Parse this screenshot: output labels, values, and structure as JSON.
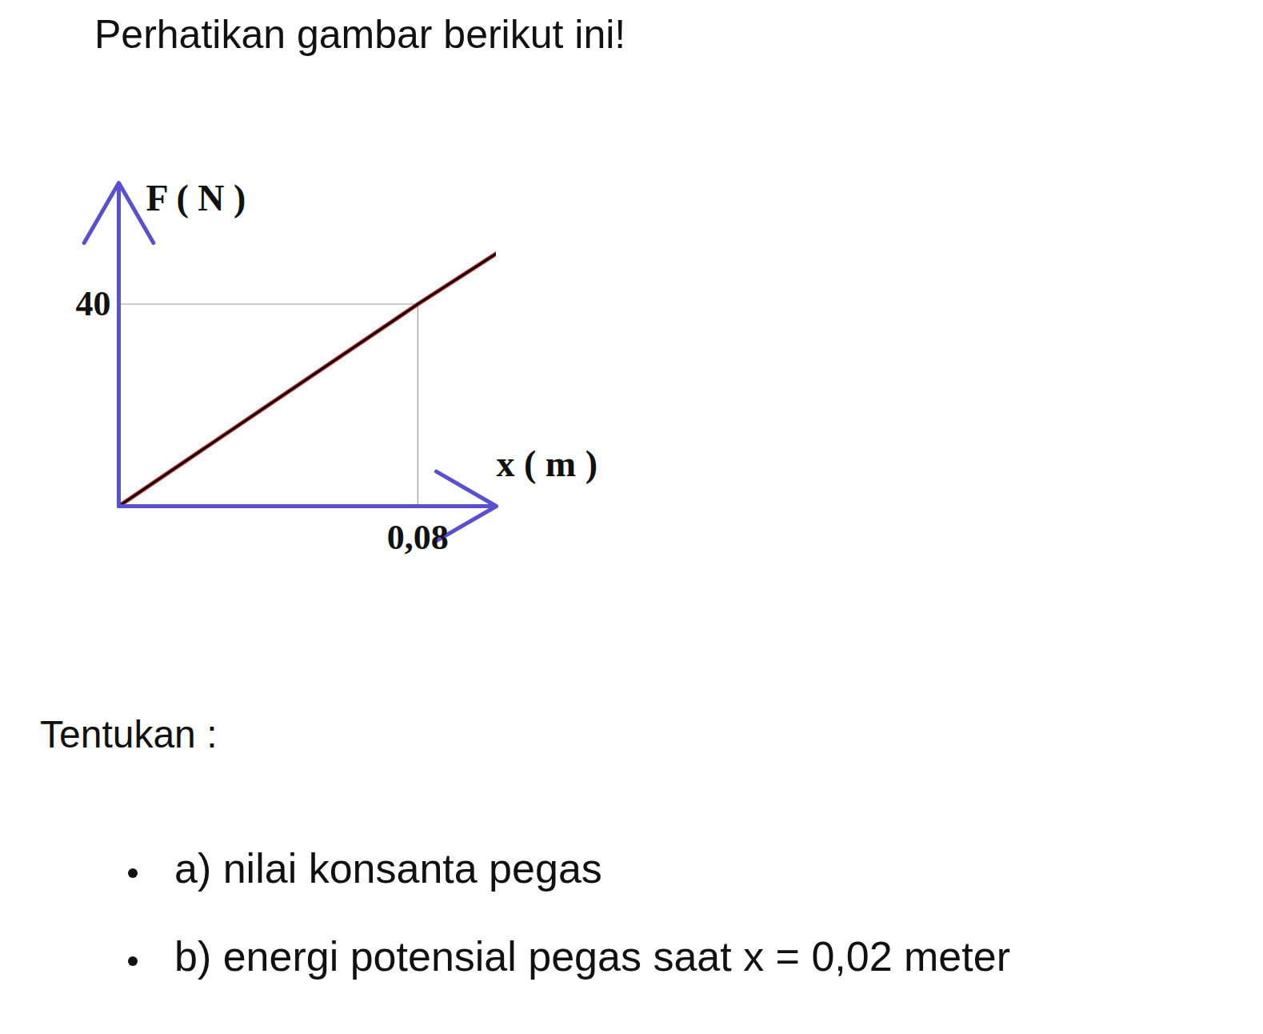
{
  "header": "Perhatikan gambar berikut ini!",
  "chart_data": {
    "type": "line",
    "xlabel": "x ( m )",
    "ylabel": "F ( N )",
    "x": [
      0,
      0.08,
      0.101
    ],
    "values": [
      0,
      40,
      50
    ],
    "color": "#000000",
    "xlim": [
      0,
      0.101
    ],
    "ylim": [
      0,
      64
    ],
    "xticks": [
      {
        "value": 0.08,
        "label": "0,08"
      }
    ],
    "yticks": [
      40
    ],
    "grid": false
  },
  "question": {
    "intro": "Tentukan :",
    "items": [
      "a) nilai konsanta pegas",
      "b) energi potensial pegas saat x = 0,02 meter"
    ]
  }
}
